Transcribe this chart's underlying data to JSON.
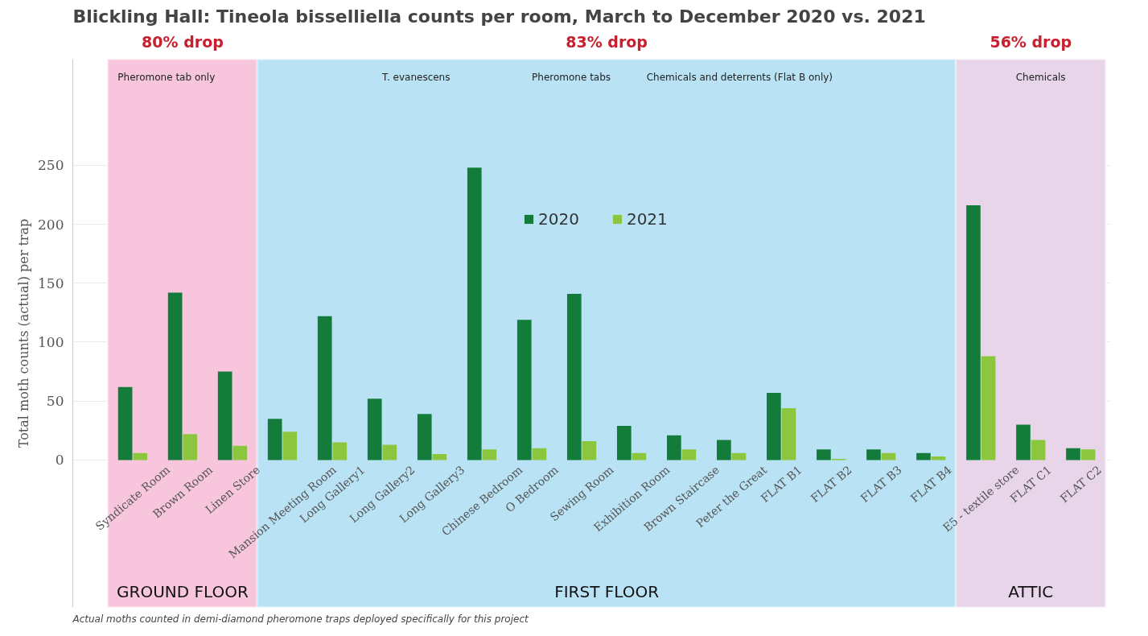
{
  "chart_data": {
    "type": "bar",
    "title": "Blickling Hall: Tineola bisselliella counts per room, March to December 2020 vs. 2021",
    "ylabel": "Total moth counts (actual) per trap",
    "categories": [
      "Syndicate Room",
      "Brown Room",
      "Linen Store",
      "Mansion Meeting Room",
      "Long Gallery1",
      "Long Gallery2",
      "Long Gallery3",
      "Chinese Bedroom",
      "O Bedroom",
      "Sewing Room",
      "Exhibition Room",
      "Brown Staircase",
      "Peter the Great",
      "FLAT B1",
      "FLAT B2",
      "FLAT B3",
      "FLAT B4",
      "E5 - textile store",
      "FLAT C1",
      "FLAT C2"
    ],
    "series": [
      {
        "name": "2020",
        "color": "#137c3a",
        "values": [
          62,
          142,
          75,
          35,
          122,
          52,
          39,
          248,
          119,
          141,
          29,
          21,
          17,
          57,
          9,
          9,
          6,
          216,
          30,
          10
        ]
      },
      {
        "name": "2021",
        "color": "#8cc63f",
        "values": [
          6,
          22,
          12,
          24,
          15,
          13,
          5,
          9,
          10,
          16,
          6,
          9,
          6,
          44,
          1,
          6,
          3,
          88,
          17,
          9
        ]
      }
    ],
    "ylim": [
      -125,
      340
    ],
    "yticks": [
      0,
      50,
      100,
      150,
      200,
      250
    ],
    "grid": "y",
    "legend": "top",
    "bands": [
      {
        "axis": "x",
        "from": "Syndicate Room",
        "to": "Linen Store",
        "label": "GROUND FLOOR",
        "color": "#f7c6dc"
      },
      {
        "axis": "x",
        "from": "Mansion Meeting Room",
        "to": "FLAT B4",
        "label": "FIRST FLOOR",
        "color": "#b9e3f5"
      },
      {
        "axis": "x",
        "from": "E5 - textile store",
        "to": "FLAT C2",
        "label": "ATTIC",
        "color": "#e8d5ea"
      }
    ],
    "annotations": [
      "80% drop",
      "83% drop",
      "56% drop",
      "Pheromone tab only",
      "T. evanescens",
      "Pheromone tabs",
      "Chemicals and deterrents (Flat B only)",
      "Chemicals",
      "Actual moths counted in demi-diamond pheromone traps deployed specifically for this project"
    ]
  }
}
